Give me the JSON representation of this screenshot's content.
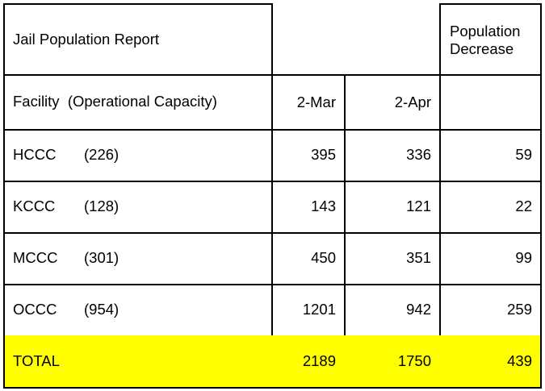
{
  "report": {
    "title": "Jail Population Report",
    "decrease_header": "Population Decrease"
  },
  "columns": {
    "facility": "Facility  (Operational Capacity)",
    "mar": "2-Mar",
    "apr": "2-Apr"
  },
  "rows": [
    {
      "facility": "HCCC",
      "capacity": "(226)",
      "mar": "395",
      "apr": "336",
      "decrease": "59"
    },
    {
      "facility": "KCCC",
      "capacity": "(128)",
      "mar": "143",
      "apr": "121",
      "decrease": "22"
    },
    {
      "facility": "MCCC",
      "capacity": "(301)",
      "mar": "450",
      "apr": "351",
      "decrease": "99"
    },
    {
      "facility": "OCCC",
      "capacity": "(954)",
      "mar": "1201",
      "apr": "942",
      "decrease": "259"
    }
  ],
  "total": {
    "label": "TOTAL",
    "mar": "2189",
    "apr": "1750",
    "decrease": "439"
  },
  "colors": {
    "highlight": "#ffff00",
    "border": "#000000"
  }
}
